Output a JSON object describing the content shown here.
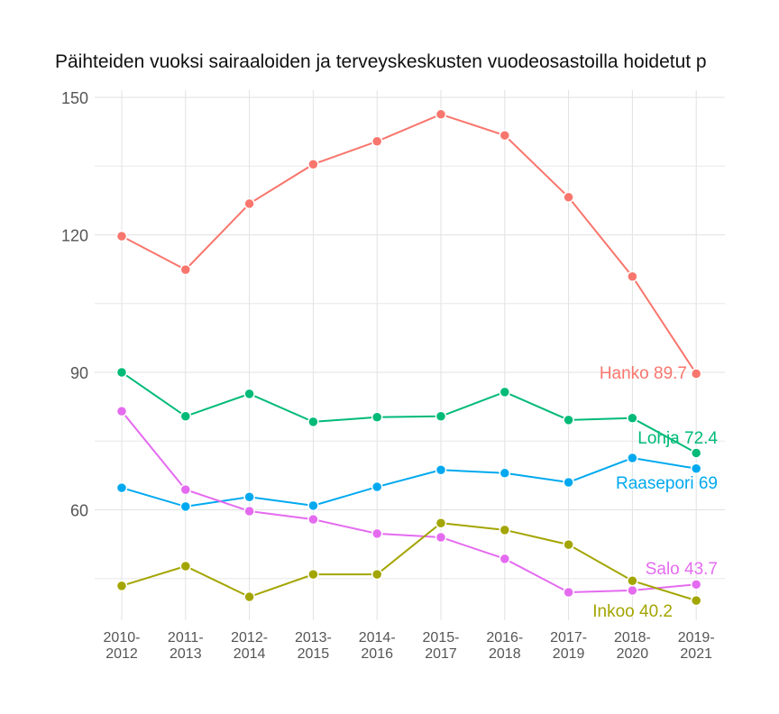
{
  "chart_data": {
    "type": "line",
    "title": "Päihteiden vuoksi sairaaloiden ja terveyskeskusten vuodeosastoilla hoidetut p",
    "categories": [
      "2010-\n2012",
      "2011-\n2013",
      "2012-\n2014",
      "2013-\n2015",
      "2014-\n2016",
      "2015-\n2017",
      "2016-\n2018",
      "2017-\n2019",
      "2018-\n2020",
      "2019-\n2021"
    ],
    "ylim": [
      37,
      151
    ],
    "yticks": [
      60,
      90,
      120,
      150
    ],
    "grid": true,
    "series": [
      {
        "name": "Hanko",
        "color": "#F8766D",
        "values": [
          119.7,
          112.4,
          126.8,
          135.4,
          140.4,
          146.3,
          141.7,
          128.2,
          110.9,
          89.7
        ],
        "label": "Hanko 89.7"
      },
      {
        "name": "Lohja",
        "color": "#00BA78",
        "values": [
          90.0,
          80.4,
          85.3,
          79.2,
          80.2,
          80.4,
          85.7,
          79.6,
          80.0,
          72.4
        ],
        "label": "Lohja 72.4"
      },
      {
        "name": "Raasepori",
        "color": "#00A9EF",
        "values": [
          64.8,
          60.7,
          62.8,
          60.9,
          65.0,
          68.7,
          68.0,
          66.0,
          71.3,
          69
        ],
        "label": "Raasepori 69"
      },
      {
        "name": "Salo",
        "color": "#E46BF0",
        "values": [
          81.5,
          64.4,
          59.7,
          57.9,
          54.8,
          54.0,
          49.3,
          42.0,
          42.4,
          43.7
        ],
        "label": "Salo 43.7"
      },
      {
        "name": "Inkoo",
        "color": "#A3A500",
        "values": [
          43.4,
          47.7,
          41.0,
          45.9,
          45.9,
          57.1,
          55.6,
          52.4,
          44.5,
          40.2
        ],
        "label": "Inkoo 40.2"
      }
    ]
  }
}
